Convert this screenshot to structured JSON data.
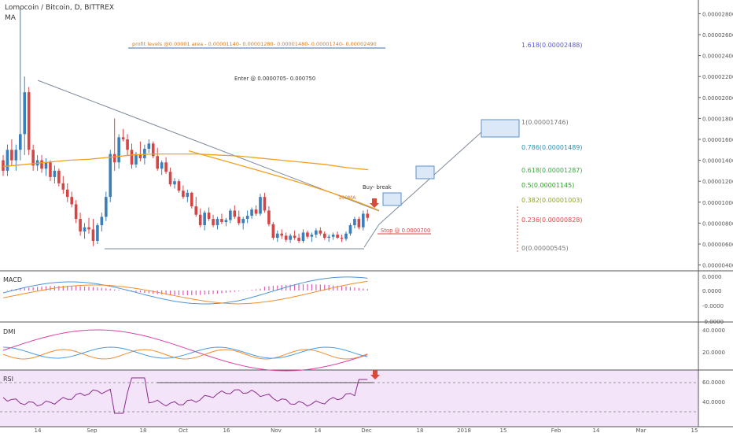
{
  "header": {
    "title": "Lomocoin / Bitcoin, D, BITTREX",
    "indicator": "MA"
  },
  "chart_data": {
    "type": "candlestick",
    "symbol": "Lomocoin / Bitcoin",
    "timeframe": "D",
    "exchange": "BITTREX",
    "price_axis_ticks": [
      "0.00000400",
      "0.00000600",
      "0.00000800",
      "0.00001000",
      "0.00001200",
      "0.00001400",
      "0.00001600",
      "0.00001800",
      "0.00002000",
      "0.00002200",
      "0.00002400",
      "0.00002600",
      "0.00002800"
    ],
    "time_axis_ticks": [
      "14",
      "Sep",
      "18",
      "Oct",
      "16",
      "Nov",
      "14",
      "Dec",
      "18",
      "2018",
      "15",
      "Feb",
      "14",
      "Mar",
      "15"
    ],
    "annotations": {
      "profit_levels": "profit levels @0.00001 area - 0.00001140- 0.00001280- 0.00001480- 0.00001740- 0.00002490",
      "enter": "Enter @ 0.0000705- 0.000750",
      "buy_break": "Buy- break",
      "ma_label": "100MA",
      "stop": "Stop @ 0.0000700"
    },
    "fibonacci": [
      {
        "label": "1.618(0.00002488)",
        "color": "#5b5bd6"
      },
      {
        "label": "1(0.00001746)",
        "color": "#787878"
      },
      {
        "label": "0.786(0.00001489)",
        "color": "#2b8fb5"
      },
      {
        "label": "0.618(0.00001287)",
        "color": "#3aa845"
      },
      {
        "label": "0.5(0.00001145)",
        "color": "#36a02d"
      },
      {
        "label": "0.382(0.00001003)",
        "color": "#8ea52b"
      },
      {
        "label": "0.236(0.00000828)",
        "color": "#e04848"
      },
      {
        "label": "0(0.00000545)",
        "color": "#787878"
      }
    ],
    "candles_ohlc": [
      [
        14.0,
        14.5,
        12.5,
        13.0
      ],
      [
        13.0,
        15.5,
        12.5,
        15.0
      ],
      [
        15.0,
        16.0,
        13.5,
        14.0
      ],
      [
        14.0,
        15.5,
        13.0,
        15.0
      ],
      [
        15.0,
        28.5,
        14.0,
        16.5
      ],
      [
        16.5,
        22.0,
        14.5,
        20.5
      ],
      [
        20.5,
        21.0,
        14.5,
        15.0
      ],
      [
        15.0,
        15.5,
        13.0,
        13.5
      ],
      [
        13.5,
        14.5,
        13.0,
        14.0
      ],
      [
        14.0,
        14.5,
        12.8,
        13.2
      ],
      [
        13.2,
        14.2,
        12.5,
        13.8
      ],
      [
        13.8,
        14.0,
        12.0,
        12.4
      ],
      [
        12.4,
        13.5,
        11.8,
        13.0
      ],
      [
        13.0,
        13.2,
        11.5,
        11.8
      ],
      [
        11.8,
        12.5,
        10.8,
        11.2
      ],
      [
        11.2,
        11.8,
        10.0,
        10.5
      ],
      [
        10.5,
        11.0,
        9.5,
        9.8
      ],
      [
        9.8,
        10.2,
        8.0,
        8.4
      ],
      [
        8.4,
        9.0,
        6.8,
        7.2
      ],
      [
        7.2,
        8.0,
        6.5,
        7.6
      ],
      [
        7.6,
        8.5,
        7.0,
        7.4
      ],
      [
        7.4,
        8.4,
        5.8,
        6.3
      ],
      [
        6.3,
        8.0,
        6.0,
        7.8
      ],
      [
        7.8,
        9.0,
        7.2,
        8.6
      ],
      [
        8.6,
        11.0,
        8.2,
        10.5
      ],
      [
        10.5,
        15.0,
        10.0,
        14.6
      ],
      [
        14.6,
        18.0,
        13.0,
        13.8
      ],
      [
        13.8,
        16.5,
        13.2,
        16.2
      ],
      [
        16.2,
        17.0,
        15.8,
        16.0
      ],
      [
        16.0,
        16.5,
        14.5,
        15.0
      ],
      [
        15.0,
        15.6,
        13.2,
        13.6
      ],
      [
        13.6,
        14.8,
        13.3,
        14.6
      ],
      [
        14.6,
        15.8,
        13.9,
        14.2
      ],
      [
        14.2,
        15.5,
        13.6,
        15.1
      ],
      [
        15.1,
        16.0,
        14.7,
        15.6
      ],
      [
        15.6,
        15.8,
        14.2,
        14.4
      ],
      [
        14.4,
        15.2,
        13.0,
        13.2
      ],
      [
        13.2,
        14.0,
        12.6,
        13.8
      ],
      [
        13.8,
        14.3,
        12.7,
        12.9
      ],
      [
        12.9,
        13.3,
        11.5,
        11.7
      ],
      [
        11.7,
        12.3,
        11.3,
        12.0
      ],
      [
        12.0,
        12.2,
        10.9,
        11.1
      ],
      [
        11.1,
        11.6,
        10.3,
        10.5
      ],
      [
        10.5,
        11.2,
        10.0,
        10.9
      ],
      [
        10.9,
        11.0,
        9.4,
        9.6
      ],
      [
        9.6,
        10.5,
        8.6,
        8.8
      ],
      [
        8.8,
        9.4,
        7.6,
        7.8
      ],
      [
        7.8,
        9.2,
        7.3,
        9.0
      ],
      [
        9.0,
        9.5,
        8.2,
        8.4
      ],
      [
        8.4,
        8.8,
        7.6,
        7.8
      ],
      [
        7.8,
        8.6,
        7.4,
        8.4
      ],
      [
        8.4,
        8.9,
        7.9,
        8.1
      ],
      [
        8.1,
        8.5,
        7.7,
        8.3
      ],
      [
        8.3,
        9.4,
        8.0,
        9.2
      ],
      [
        9.2,
        9.7,
        8.4,
        8.6
      ],
      [
        8.6,
        9.2,
        7.8,
        8.0
      ],
      [
        8.0,
        8.6,
        7.4,
        8.4
      ],
      [
        8.4,
        9.2,
        8.0,
        8.7
      ],
      [
        8.7,
        9.5,
        8.4,
        9.3
      ],
      [
        9.3,
        9.7,
        8.7,
        8.9
      ],
      [
        8.9,
        10.8,
        8.7,
        10.5
      ],
      [
        10.5,
        10.9,
        9.0,
        9.2
      ],
      [
        9.2,
        9.6,
        7.7,
        7.9
      ],
      [
        7.9,
        8.1,
        6.4,
        6.6
      ],
      [
        6.6,
        7.3,
        6.2,
        7.0
      ],
      [
        7.0,
        7.4,
        6.5,
        6.8
      ],
      [
        6.8,
        7.1,
        6.2,
        6.4
      ],
      [
        6.4,
        7.0,
        6.1,
        6.8
      ],
      [
        6.8,
        7.3,
        6.4,
        6.6
      ],
      [
        6.6,
        7.0,
        6.1,
        6.3
      ],
      [
        6.3,
        7.4,
        6.1,
        7.1
      ],
      [
        7.1,
        7.3,
        6.5,
        6.7
      ],
      [
        6.7,
        7.1,
        6.2,
        6.9
      ],
      [
        6.9,
        7.5,
        6.6,
        7.3
      ],
      [
        7.3,
        7.6,
        6.8,
        7.0
      ],
      [
        7.0,
        7.2,
        6.4,
        6.6
      ],
      [
        6.6,
        6.9,
        6.2,
        6.7
      ],
      [
        6.7,
        7.1,
        6.4,
        6.9
      ],
      [
        6.9,
        7.2,
        6.5,
        6.6
      ],
      [
        6.6,
        6.9,
        6.2,
        6.5
      ],
      [
        6.5,
        7.2,
        6.3,
        7.0
      ],
      [
        7.0,
        8.0,
        6.8,
        7.8
      ],
      [
        7.8,
        8.6,
        7.5,
        8.4
      ],
      [
        8.4,
        8.6,
        7.4,
        7.6
      ],
      [
        7.6,
        9.2,
        7.3,
        8.9
      ],
      [
        8.9,
        9.3,
        8.2,
        8.5
      ]
    ]
  },
  "panes": {
    "macd": {
      "label": "MACD",
      "ticks": [
        "0.0000",
        "0.0000",
        "-0.0000",
        "-0.0000"
      ]
    },
    "dmi": {
      "label": "DMI",
      "ticks": [
        "40.0000",
        "20.0000"
      ]
    },
    "rsi": {
      "label": "RSI",
      "ticks": [
        "60.0000",
        "40.0000"
      ]
    }
  },
  "colors": {
    "bull": "#3a7fb9",
    "bear": "#d64545",
    "ma100": "#f0a020",
    "trend": "#7e8a9a",
    "macd_fast": "#4c94d8",
    "macd_slow": "#f08c30",
    "macd_hist": "#e05ab8",
    "rsi_bg": "#f3e4fa",
    "rsi_line": "#8a2a8a",
    "arrow": "#d84a3a"
  }
}
